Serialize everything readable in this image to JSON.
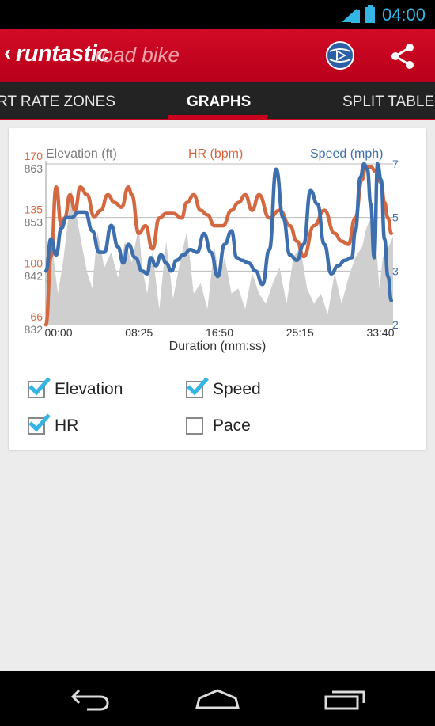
{
  "status_bar": {
    "time": "04:00"
  },
  "app_bar": {
    "brand": "runtastic",
    "product": "road bike"
  },
  "tabs": [
    {
      "label": "RT RATE ZONES",
      "active": false
    },
    {
      "label": "GRAPHS",
      "active": true
    },
    {
      "label": "SPLIT TABLE",
      "active": false
    }
  ],
  "chart_data": {
    "type": "line",
    "xlabel": "Duration (mm:ss)",
    "x_ticks": [
      "00:00",
      "08:25",
      "16:50",
      "25:15",
      "33:40"
    ],
    "xlim": [
      0,
      2020
    ],
    "axes": {
      "hr": {
        "label": "HR (bpm)",
        "ticks": [
          "170",
          "135",
          "100",
          "66"
        ],
        "ylim": [
          66,
          170
        ],
        "color": "#d46840"
      },
      "elevation": {
        "label": "Elevation (ft)",
        "ticks": [
          "863",
          "853",
          "842",
          "832"
        ],
        "ylim": [
          832,
          863
        ],
        "color": "#7a7a7a"
      },
      "speed": {
        "label": "Speed (mph)",
        "ticks": [
          "7",
          "5",
          "3",
          "2"
        ],
        "ylim": [
          1,
          7
        ],
        "color": "#3d6fae"
      }
    },
    "series": [
      {
        "name": "Elevation",
        "axis": "elevation",
        "style": "area",
        "color": "#cfcfcf",
        "x": [
          0,
          40,
          70,
          100,
          150,
          200,
          240,
          270,
          300,
          340,
          380,
          420,
          460,
          500,
          540,
          560,
          590,
          620,
          660,
          700,
          740,
          780,
          820,
          860,
          900,
          940,
          980,
          1010,
          1040,
          1080,
          1120,
          1160,
          1200,
          1240,
          1280,
          1320,
          1360,
          1400,
          1440,
          1480,
          1520,
          1560,
          1600,
          1640,
          1680,
          1720,
          1760,
          1800,
          1840,
          1860,
          1880,
          1900,
          1920,
          1940,
          1960,
          1980,
          2020
        ],
        "y": [
          840,
          846,
          838,
          844,
          858,
          849,
          842,
          839,
          850,
          843,
          846,
          841,
          848,
          844,
          851,
          843,
          838,
          846,
          835,
          848,
          837,
          844,
          850,
          838,
          840,
          835,
          847,
          841,
          845,
          838,
          839,
          835,
          842,
          838,
          836,
          840,
          843,
          836,
          845,
          847,
          839,
          836,
          838,
          834,
          842,
          836,
          841,
          845,
          847,
          850,
          852,
          852,
          848,
          839,
          845,
          846,
          849
        ]
      },
      {
        "name": "HR",
        "axis": "hr",
        "style": "line",
        "color": "#d46840",
        "x": [
          0,
          30,
          60,
          90,
          110,
          140,
          170,
          200,
          240,
          280,
          320,
          360,
          400,
          440,
          480,
          500,
          540,
          580,
          620,
          660,
          700,
          740,
          790,
          820,
          860,
          900,
          940,
          980,
          1030,
          1080,
          1120,
          1160,
          1200,
          1240,
          1300,
          1360,
          1420,
          1460,
          1500,
          1560,
          1620,
          1680,
          1720,
          1760,
          1800,
          1840,
          1860,
          1890,
          1920,
          1950,
          1970,
          1990,
          2010
        ],
        "y": [
          66,
          110,
          155,
          130,
          135,
          150,
          140,
          155,
          150,
          136,
          140,
          150,
          145,
          142,
          155,
          150,
          125,
          130,
          115,
          135,
          138,
          138,
          135,
          145,
          150,
          140,
          137,
          130,
          130,
          140,
          145,
          150,
          140,
          150,
          135,
          140,
          130,
          120,
          110,
          130,
          140,
          125,
          120,
          118,
          135,
          160,
          168,
          168,
          165,
          158,
          145,
          135,
          125
        ]
      },
      {
        "name": "Speed",
        "axis": "speed",
        "style": "line",
        "color": "#3d6fae",
        "x": [
          0,
          30,
          60,
          90,
          120,
          150,
          190,
          230,
          270,
          310,
          340,
          380,
          420,
          450,
          480,
          520,
          560,
          590,
          610,
          640,
          670,
          700,
          730,
          760,
          800,
          840,
          880,
          920,
          960,
          1000,
          1040,
          1080,
          1110,
          1140,
          1180,
          1220,
          1260,
          1300,
          1340,
          1380,
          1420,
          1460,
          1500,
          1540,
          1580,
          1620,
          1660,
          1700,
          1740,
          1780,
          1800,
          1830,
          1850,
          1870,
          1890,
          1910,
          1930,
          1950,
          1970,
          1990,
          2010
        ],
        "y": [
          3.0,
          4.2,
          3.6,
          4.6,
          5.0,
          5.0,
          5.2,
          5.2,
          4.5,
          3.7,
          3.7,
          4.7,
          3.9,
          3.3,
          4.0,
          3.5,
          3.0,
          2.9,
          3.5,
          3.2,
          3.6,
          3.3,
          3.0,
          3.4,
          3.6,
          3.8,
          3.7,
          4.4,
          3.7,
          2.8,
          4.0,
          4.5,
          3.5,
          3.4,
          3.3,
          3.0,
          2.5,
          3.8,
          6.8,
          5.0,
          3.6,
          3.4,
          4.0,
          6.0,
          5.5,
          4.0,
          2.9,
          3.2,
          3.4,
          3.5,
          4.5,
          6.5,
          7.0,
          6.8,
          5.5,
          3.5,
          7.0,
          6.4,
          4.2,
          2.8,
          1.9
        ]
      }
    ]
  },
  "checkboxes": [
    {
      "label": "Elevation",
      "checked": true
    },
    {
      "label": "Speed",
      "checked": true
    },
    {
      "label": "HR",
      "checked": true
    },
    {
      "label": "Pace",
      "checked": false
    }
  ],
  "colors": {
    "accent": "#c8001e",
    "holo_blue": "#33b5e5",
    "check_blue": "#33b5e5"
  },
  "icons": {
    "status": [
      "wifi-icon",
      "signal-icon",
      "battery-icon"
    ],
    "appbar": [
      "back-caret-icon",
      "app-globe-icon",
      "share-icon"
    ],
    "nav": [
      "back-icon",
      "home-icon",
      "recents-icon"
    ]
  }
}
